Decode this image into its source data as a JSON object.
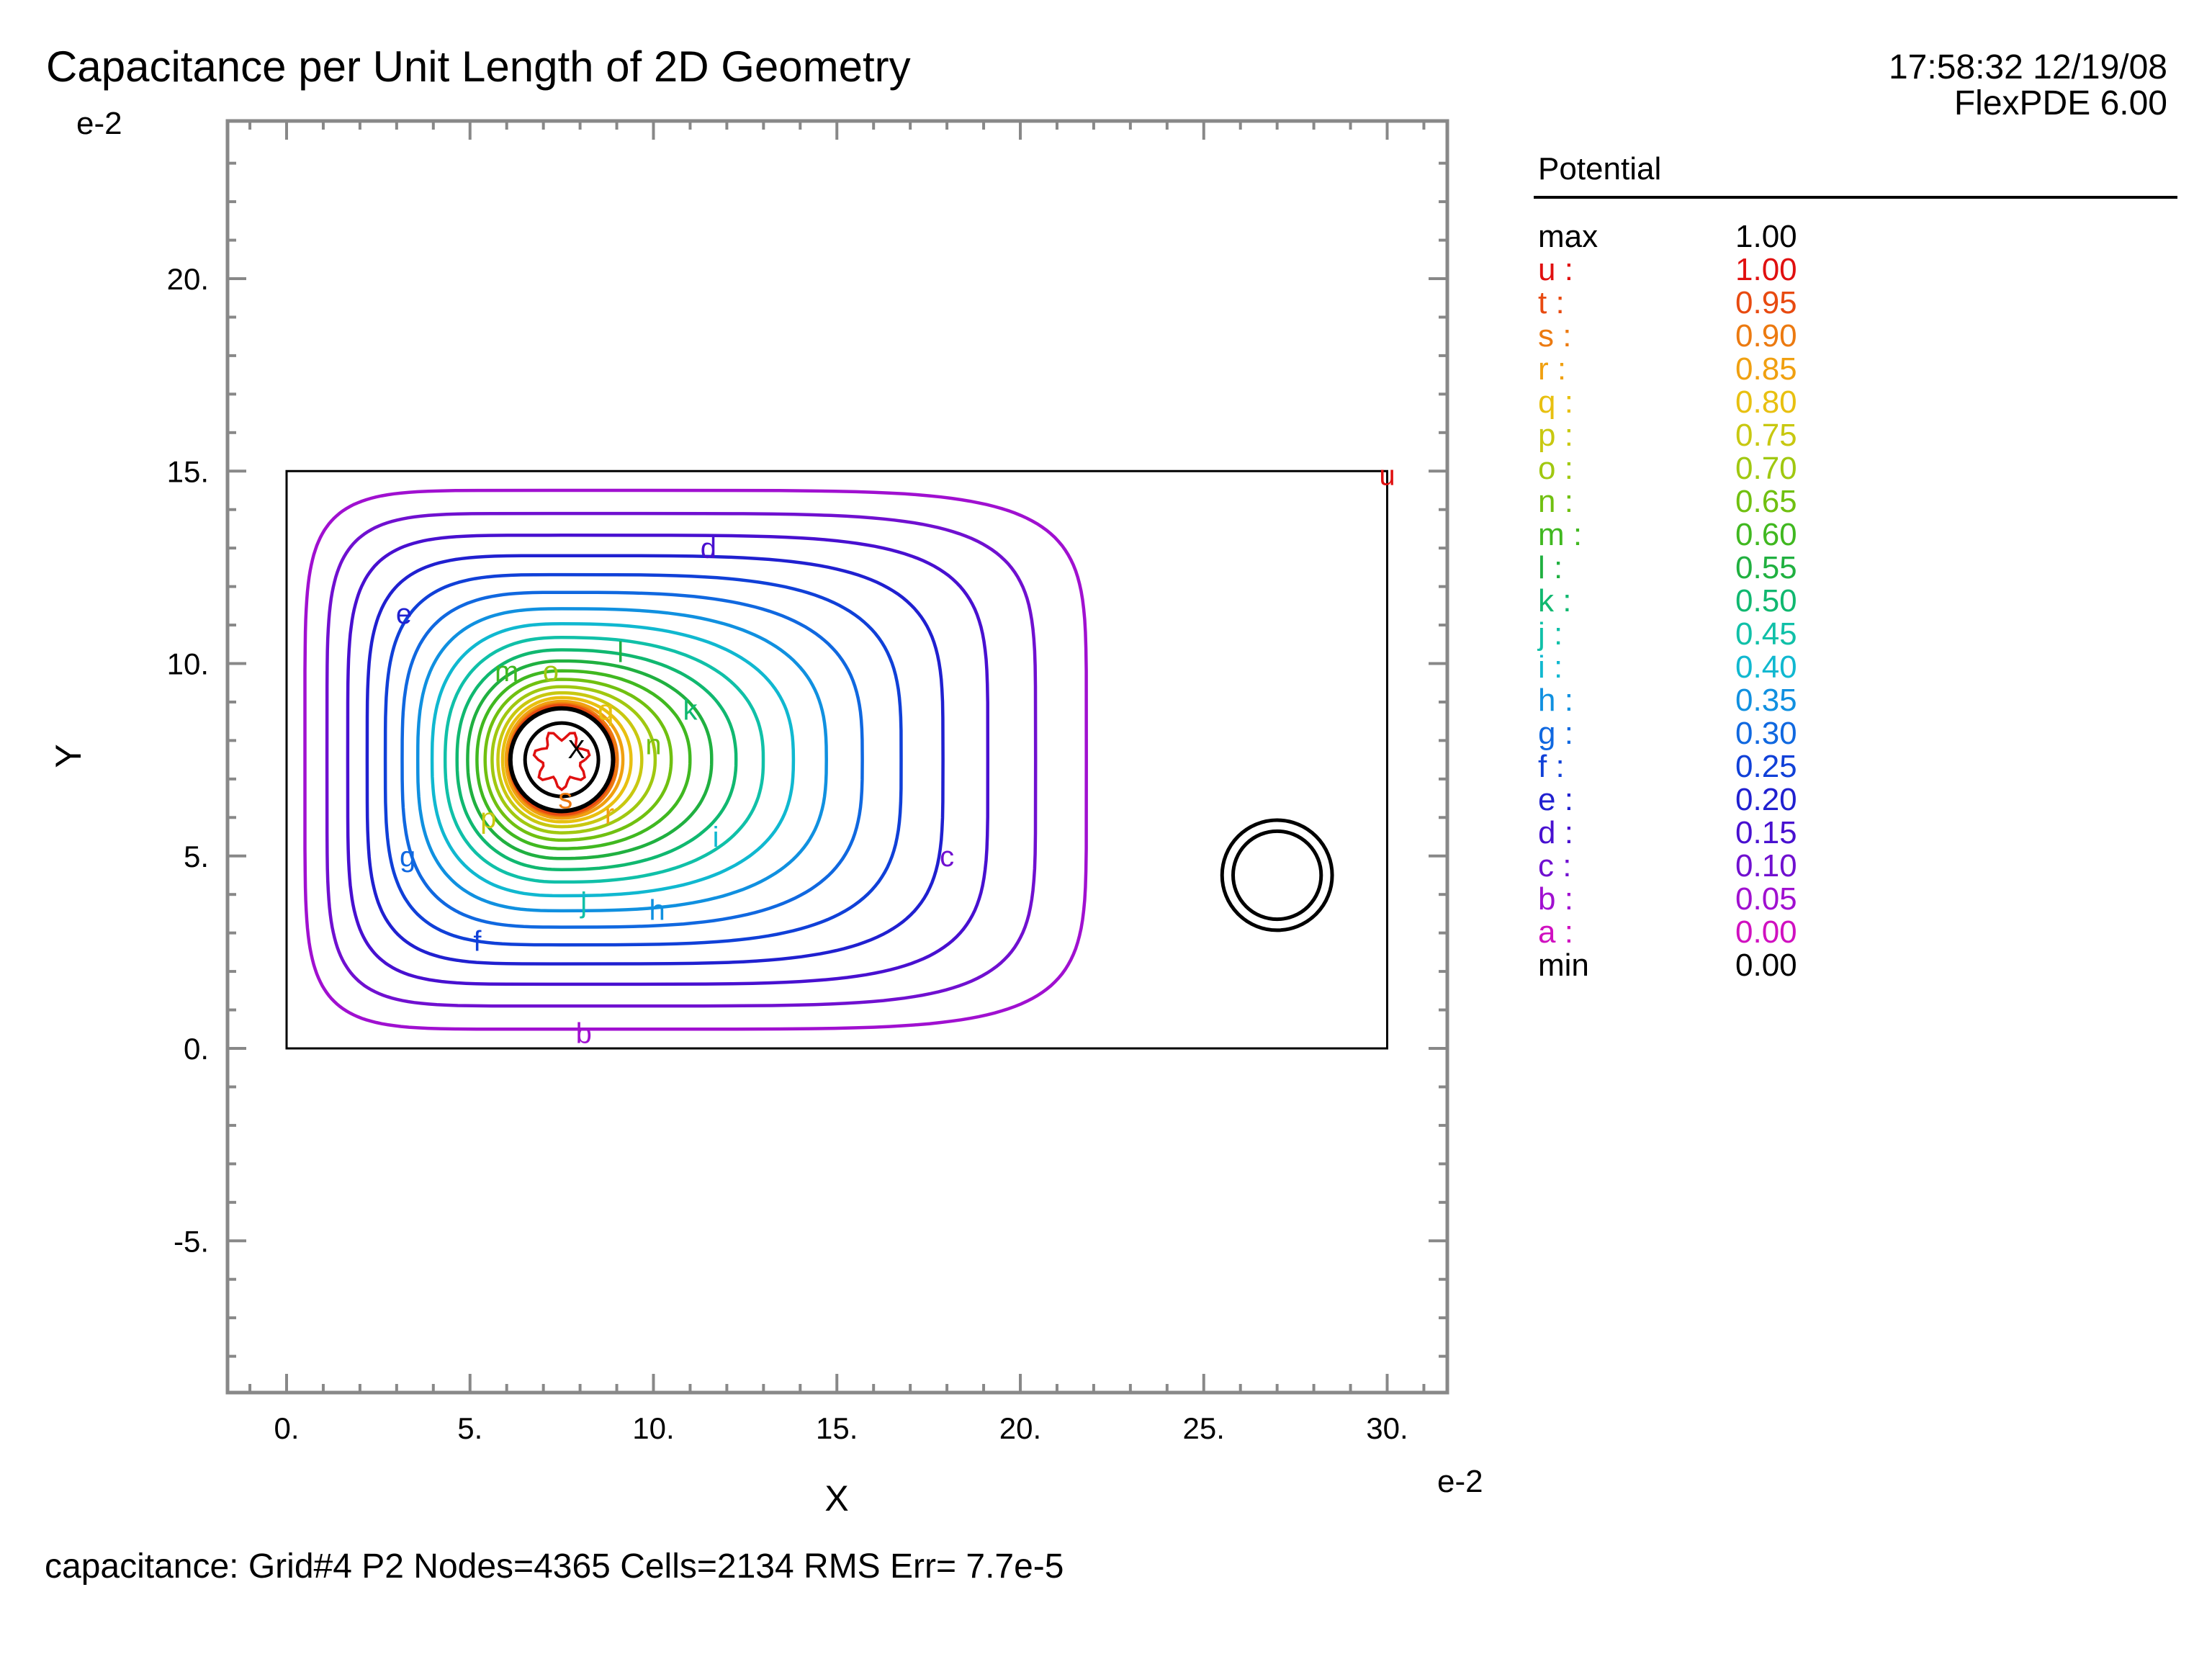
{
  "header": {
    "title": "Capacitance per Unit Length of 2D Geometry",
    "timestamp": "17:58:32 12/19/08",
    "version": "FlexPDE 6.00"
  },
  "footer": {
    "status": "capacitance:  Grid#4  P2  Nodes=4365 Cells=2134 RMS Err= 7.7e-5"
  },
  "chart_data": {
    "type": "contour",
    "xlabel": "X",
    "ylabel": "Y",
    "x_exponent": "e-2",
    "y_exponent": "e-2",
    "xlim": [
      -1.6,
      31.6
    ],
    "ylim": [
      -9.0,
      24.0
    ],
    "x_ticks": [
      0,
      5,
      10,
      15,
      20,
      25,
      30
    ],
    "x_tick_labels": [
      "0.",
      "5.",
      "10.",
      "15.",
      "20.",
      "25.",
      "30."
    ],
    "y_ticks": [
      -5,
      0,
      5,
      10,
      15,
      20
    ],
    "y_tick_labels": [
      "-5.",
      "0.",
      "5.",
      "10.",
      "15.",
      "20."
    ],
    "domain_rect": {
      "x": [
        0,
        30
      ],
      "y": [
        0,
        15
      ]
    },
    "inner_conductor": {
      "cx": 7.5,
      "cy": 7.5,
      "r_inner": 1.0,
      "r_outer": 1.4
    },
    "second_conductor": {
      "cx": 27.0,
      "cy": 4.5,
      "r_inner": 1.2,
      "r_outer": 1.5
    },
    "legend": {
      "title": "Potential",
      "entries": [
        {
          "key": "max",
          "value": "1.00",
          "color": "#000000"
        },
        {
          "key": "u :",
          "value": "1.00",
          "color": "#e01010"
        },
        {
          "key": "t :",
          "value": "0.95",
          "color": "#e84a10"
        },
        {
          "key": "s :",
          "value": "0.90",
          "color": "#ec7a10"
        },
        {
          "key": "r :",
          "value": "0.85",
          "color": "#f0a010"
        },
        {
          "key": "q :",
          "value": "0.80",
          "color": "#e8c010"
        },
        {
          "key": "p :",
          "value": "0.75",
          "color": "#c8c810"
        },
        {
          "key": "o :",
          "value": "0.70",
          "color": "#a0c810"
        },
        {
          "key": "n :",
          "value": "0.65",
          "color": "#70c010"
        },
        {
          "key": "m :",
          "value": "0.60",
          "color": "#40b820"
        },
        {
          "key": "l :",
          "value": "0.55",
          "color": "#20b040"
        },
        {
          "key": "k :",
          "value": "0.50",
          "color": "#10b870"
        },
        {
          "key": "j :",
          "value": "0.45",
          "color": "#10c0a8"
        },
        {
          "key": "i :",
          "value": "0.40",
          "color": "#10b8d0"
        },
        {
          "key": "h :",
          "value": "0.35",
          "color": "#1090e0"
        },
        {
          "key": "g :",
          "value": "0.30",
          "color": "#1068e0"
        },
        {
          "key": "f :",
          "value": "0.25",
          "color": "#1040d8"
        },
        {
          "key": "e :",
          "value": "0.20",
          "color": "#2020d0"
        },
        {
          "key": "d :",
          "value": "0.15",
          "color": "#4810d0"
        },
        {
          "key": "c :",
          "value": "0.10",
          "color": "#7010d0"
        },
        {
          "key": "b :",
          "value": "0.05",
          "color": "#a010d0"
        },
        {
          "key": "a :",
          "value": "0.00",
          "color": "#d010c0"
        },
        {
          "key": "min",
          "value": "0.00",
          "color": "#000000"
        }
      ]
    },
    "contour_labels": [
      {
        "label": "b",
        "x": 8.1,
        "y": 0.4
      },
      {
        "label": "c",
        "x": 18.0,
        "y": 5.0
      },
      {
        "label": "d",
        "x": 11.5,
        "y": 13.0
      },
      {
        "label": "e",
        "x": 3.2,
        "y": 11.3
      },
      {
        "label": "f",
        "x": 5.2,
        "y": 2.8
      },
      {
        "label": "g",
        "x": 3.3,
        "y": 5.0
      },
      {
        "label": "h",
        "x": 10.1,
        "y": 3.6
      },
      {
        "label": "i",
        "x": 11.7,
        "y": 5.5
      },
      {
        "label": "j",
        "x": 8.1,
        "y": 3.8
      },
      {
        "label": "k",
        "x": 11.0,
        "y": 8.8
      },
      {
        "label": "l",
        "x": 9.1,
        "y": 10.3
      },
      {
        "label": "m",
        "x": 6.0,
        "y": 9.8
      },
      {
        "label": "n",
        "x": 10.0,
        "y": 7.9
      },
      {
        "label": "o",
        "x": 7.2,
        "y": 9.8
      },
      {
        "label": "p",
        "x": 5.5,
        "y": 6.0
      },
      {
        "label": "q",
        "x": 8.7,
        "y": 8.8
      },
      {
        "label": "r",
        "x": 8.8,
        "y": 6.1
      },
      {
        "label": "s",
        "x": 7.6,
        "y": 6.5
      },
      {
        "label": "u",
        "x": 30.0,
        "y": 14.9
      }
    ],
    "max_marker": {
      "label": "X",
      "x": 7.9,
      "y": 7.8
    }
  }
}
